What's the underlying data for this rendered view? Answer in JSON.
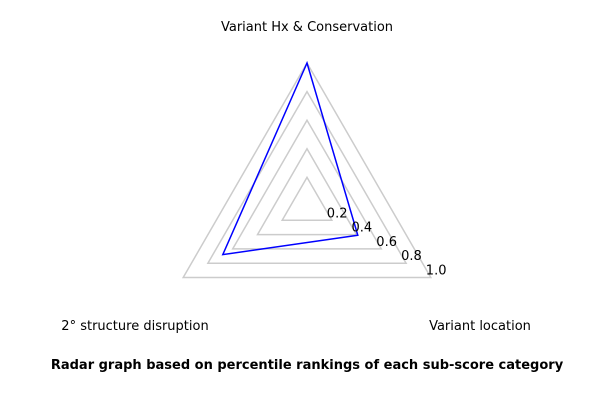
{
  "chart_data": {
    "type": "radar",
    "axes": [
      "Variant Hx & Conservation",
      "Variant location",
      "2° structure disruption"
    ],
    "rings": [
      0.2,
      0.4,
      0.6,
      0.8,
      1.0
    ],
    "ring_labels": [
      "0.2",
      "0.4",
      "0.6",
      "0.8",
      "1.0"
    ],
    "rlim": [
      0,
      1
    ],
    "series": [
      {
        "values": [
          1.0,
          0.41,
          0.68
        ],
        "color": "#0000ff"
      }
    ],
    "grid_color": "#cccccc",
    "caption": "Radar graph based on percentile rankings of each sub-score category"
  }
}
